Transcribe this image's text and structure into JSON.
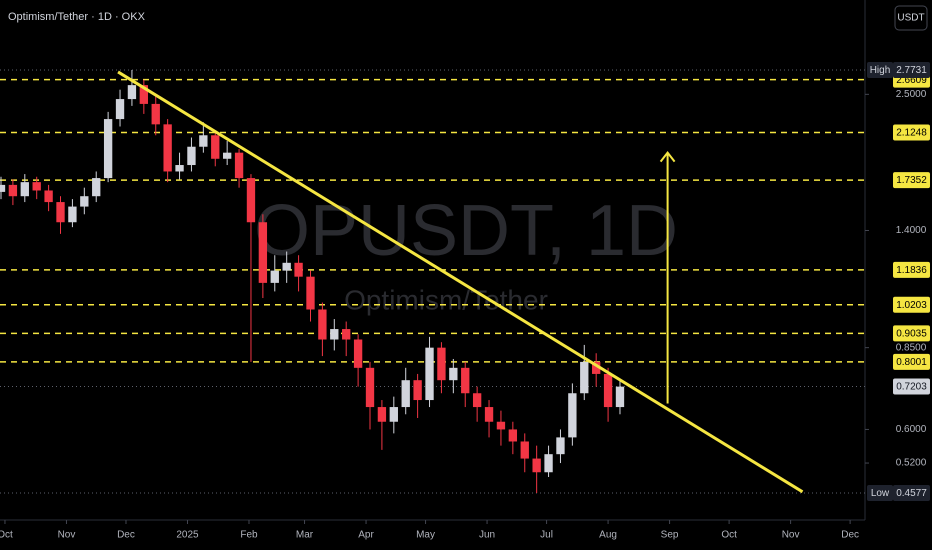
{
  "chart_data": {
    "type": "candlestick",
    "title": "Optimism/Tether · 1D · OKX",
    "watermark": "OPUSDT, 1D",
    "watermark_subtitle": "Optimism/Tether",
    "currency": "USDT",
    "log_scale": true,
    "xlim": [
      -2.5,
      433.5
    ],
    "ylim": [
      0.408,
      3.736
    ],
    "xticks": [
      {
        "value": 0,
        "label": "Oct"
      },
      {
        "value": 31,
        "label": "Nov"
      },
      {
        "value": 61,
        "label": "Dec"
      },
      {
        "value": 92,
        "label": "2025"
      },
      {
        "value": 123,
        "label": "Feb"
      },
      {
        "value": 151,
        "label": "Mar"
      },
      {
        "value": 182,
        "label": "Apr"
      },
      {
        "value": 212,
        "label": "May"
      },
      {
        "value": 243,
        "label": "Jun"
      },
      {
        "value": 273,
        "label": "Jul"
      },
      {
        "value": 304,
        "label": "Aug"
      },
      {
        "value": 335,
        "label": "Sep"
      },
      {
        "value": 365,
        "label": "Oct"
      },
      {
        "value": 396,
        "label": "Nov"
      },
      {
        "value": 426,
        "label": "Dec"
      }
    ],
    "yticks": [
      {
        "value": 2.5,
        "label": "2.5000"
      },
      {
        "value": 1.4,
        "label": "1.4000"
      },
      {
        "value": 0.85,
        "label": "0.8500"
      },
      {
        "value": 0.6,
        "label": "0.6000"
      },
      {
        "value": 0.52,
        "label": "0.5200"
      }
    ],
    "candles": {
      "up_color": "#d1d4dc",
      "down_color": "#f23645",
      "x": [
        -2,
        4,
        10,
        16,
        22,
        28,
        34,
        40,
        46,
        52,
        58,
        64,
        70,
        76,
        82,
        88,
        94,
        100,
        106,
        112,
        118,
        124,
        130,
        136,
        142,
        148,
        154,
        160,
        166,
        172,
        178,
        184,
        190,
        196,
        202,
        208,
        214,
        220,
        226,
        232,
        238,
        244,
        250,
        256,
        262,
        268,
        274,
        280,
        286,
        292,
        298,
        304,
        310
      ],
      "open": [
        1.65,
        1.7,
        1.62,
        1.72,
        1.66,
        1.58,
        1.45,
        1.55,
        1.62,
        1.75,
        2.25,
        2.45,
        2.6,
        2.4,
        2.2,
        1.8,
        1.85,
        2.0,
        2.1,
        1.9,
        1.95,
        1.75,
        1.45,
        1.12,
        1.18,
        1.22,
        1.15,
        1.0,
        0.88,
        0.92,
        0.88,
        0.78,
        0.66,
        0.62,
        0.66,
        0.74,
        0.68,
        0.85,
        0.74,
        0.78,
        0.7,
        0.66,
        0.62,
        0.6,
        0.57,
        0.53,
        0.5,
        0.54,
        0.58,
        0.7,
        0.8,
        0.76,
        0.66
      ],
      "high": [
        1.76,
        1.74,
        1.78,
        1.76,
        1.7,
        1.62,
        1.6,
        1.68,
        1.8,
        2.32,
        2.55,
        2.7731,
        2.66,
        2.48,
        2.25,
        1.95,
        2.08,
        2.22,
        2.14,
        2.05,
        1.98,
        1.78,
        1.5,
        1.26,
        1.28,
        1.26,
        1.18,
        1.03,
        0.96,
        0.95,
        0.9,
        0.8,
        0.68,
        0.69,
        0.78,
        0.76,
        0.89,
        0.87,
        0.81,
        0.8,
        0.72,
        0.68,
        0.65,
        0.62,
        0.59,
        0.56,
        0.56,
        0.6,
        0.73,
        0.86,
        0.83,
        0.78,
        0.74
      ],
      "low": [
        1.6,
        1.56,
        1.58,
        1.6,
        1.52,
        1.38,
        1.42,
        1.5,
        1.58,
        1.72,
        2.18,
        2.38,
        2.3,
        2.1,
        1.72,
        1.74,
        1.8,
        1.95,
        1.84,
        1.85,
        1.68,
        0.8,
        1.05,
        1.08,
        1.12,
        1.08,
        0.95,
        0.82,
        0.84,
        0.82,
        0.72,
        0.6,
        0.55,
        0.59,
        0.64,
        0.63,
        0.66,
        0.7,
        0.7,
        0.66,
        0.62,
        0.58,
        0.56,
        0.54,
        0.5,
        0.4577,
        0.49,
        0.52,
        0.56,
        0.68,
        0.72,
        0.62,
        0.64
      ],
      "close": [
        1.7,
        1.62,
        1.72,
        1.66,
        1.58,
        1.45,
        1.55,
        1.62,
        1.75,
        2.25,
        2.45,
        2.6,
        2.4,
        2.2,
        1.8,
        1.85,
        2.0,
        2.1,
        1.9,
        1.95,
        1.75,
        1.45,
        1.12,
        1.18,
        1.22,
        1.15,
        1.0,
        0.88,
        0.92,
        0.88,
        0.78,
        0.66,
        0.62,
        0.66,
        0.74,
        0.68,
        0.85,
        0.74,
        0.78,
        0.7,
        0.66,
        0.62,
        0.6,
        0.57,
        0.53,
        0.5,
        0.54,
        0.58,
        0.7,
        0.8,
        0.76,
        0.66,
        0.72
      ]
    },
    "levels": {
      "color": "#f5e642",
      "values": [
        2.6609,
        2.1248,
        1.7352,
        1.1836,
        1.0203,
        0.9035,
        0.8001
      ]
    },
    "high": {
      "label": "High",
      "value": 2.7731
    },
    "low": {
      "label": "Low",
      "value": 0.4577
    },
    "last_price": 0.7203,
    "trendline": {
      "color": "#f5e642",
      "x": [
        57,
        402
      ],
      "y": [
        2.75,
        0.46
      ]
    },
    "arrow": {
      "color": "#f5e642",
      "x": 334,
      "y": [
        0.67,
        1.95
      ]
    }
  }
}
